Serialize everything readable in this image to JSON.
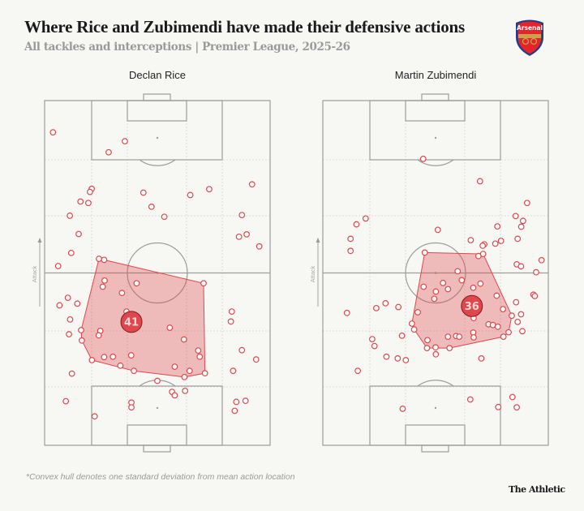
{
  "title": "Where Rice and Zubimendi have made their defensive actions",
  "subtitle": "All tackles and interceptions | Premier League, 2025-26",
  "footnote": "*Convex hull denotes one standard deviation from mean action location",
  "brand": "The Athletic",
  "crest": {
    "text": "Arsenal",
    "icon": "arsenal-crest-icon"
  },
  "colors": {
    "accent": "#e0474c",
    "hull_fill": "#f2b3b3",
    "line": "#9d9d9d",
    "background": "#f7f7f4"
  },
  "chart_data": [
    {
      "type": "scatter",
      "title": "Declan Rice",
      "direction_label": "Attack",
      "coordinates": "pitch 0-100: w = across width (left to right), l = along length (own goal 0 to opponent goal 100)",
      "badge": {
        "label": "41",
        "w": 38.5,
        "l": 35.8
      },
      "hull": [
        [
          24.1,
          54.1
        ],
        [
          26.4,
          53.8
        ],
        [
          70.5,
          47.0
        ],
        [
          71.1,
          20.9
        ],
        [
          62.0,
          19.8
        ],
        [
          39.6,
          21.6
        ],
        [
          21.0,
          24.7
        ],
        [
          16.5,
          30.4
        ],
        [
          16.2,
          33.4
        ]
      ],
      "points": [
        [
          3.7,
          90.8
        ],
        [
          35.6,
          88.2
        ],
        [
          28.4,
          85.0
        ],
        [
          20.9,
          74.4
        ],
        [
          20.1,
          73.5
        ],
        [
          43.8,
          73.3
        ],
        [
          64.6,
          72.6
        ],
        [
          73.0,
          74.3
        ],
        [
          92.0,
          75.7
        ],
        [
          15.9,
          70.7
        ],
        [
          19.4,
          70.3
        ],
        [
          47.4,
          69.2
        ],
        [
          11.2,
          66.6
        ],
        [
          53.1,
          66.3
        ],
        [
          87.5,
          66.8
        ],
        [
          15.1,
          61.3
        ],
        [
          86.2,
          60.5
        ],
        [
          89.6,
          61.2
        ],
        [
          95.2,
          57.7
        ],
        [
          11.8,
          55.8
        ],
        [
          24.1,
          54.1
        ],
        [
          26.4,
          53.8
        ],
        [
          6.0,
          52.0
        ],
        [
          26.6,
          47.8
        ],
        [
          25.8,
          46.0
        ],
        [
          40.8,
          47.0
        ],
        [
          70.5,
          47.0
        ],
        [
          34.3,
          44.2
        ],
        [
          10.3,
          42.8
        ],
        [
          6.6,
          40.6
        ],
        [
          14.5,
          41.1
        ],
        [
          36.3,
          38.8
        ],
        [
          11.3,
          36.5
        ],
        [
          83.0,
          38.8
        ],
        [
          82.6,
          35.9
        ],
        [
          16.2,
          33.4
        ],
        [
          24.7,
          33.2
        ],
        [
          10.8,
          32.2
        ],
        [
          24.0,
          31.9
        ],
        [
          55.5,
          34.1
        ],
        [
          61.8,
          30.7
        ],
        [
          16.5,
          30.4
        ],
        [
          68.1,
          27.5
        ],
        [
          68.8,
          25.7
        ],
        [
          87.5,
          27.6
        ],
        [
          93.8,
          24.9
        ],
        [
          21.0,
          24.7
        ],
        [
          26.4,
          25.6
        ],
        [
          30.3,
          25.7
        ],
        [
          38.4,
          26.1
        ],
        [
          33.6,
          23.1
        ],
        [
          39.6,
          21.6
        ],
        [
          57.7,
          22.8
        ],
        [
          64.3,
          21.6
        ],
        [
          12.1,
          20.8
        ],
        [
          62.0,
          19.8
        ],
        [
          71.1,
          20.9
        ],
        [
          83.6,
          21.6
        ],
        [
          50.0,
          18.7
        ],
        [
          56.5,
          15.5
        ],
        [
          57.7,
          14.5
        ],
        [
          62.3,
          15.8
        ],
        [
          9.4,
          12.8
        ],
        [
          38.5,
          12.4
        ],
        [
          38.5,
          11.0
        ],
        [
          85.0,
          12.6
        ],
        [
          89.1,
          12.9
        ],
        [
          84.3,
          10.0
        ],
        [
          22.2,
          8.4
        ]
      ]
    },
    {
      "type": "scatter",
      "title": "Martin Zubimendi",
      "direction_label": "Attack",
      "coordinates": "pitch 0-100: w = across width (left to right), l = along length (own goal 0 to opponent goal 100)",
      "badge": {
        "label": "36",
        "w": 66.1,
        "l": 40.4
      },
      "hull": [
        [
          45.2,
          55.9
        ],
        [
          71.1,
          55.5
        ],
        [
          83.8,
          37.6
        ],
        [
          82.4,
          32.8
        ],
        [
          80.1,
          31.5
        ],
        [
          56.2,
          28.2
        ],
        [
          46.2,
          28.2
        ],
        [
          40.5,
          33.6
        ],
        [
          39.5,
          35.3
        ]
      ],
      "points": [
        [
          44.5,
          83.1
        ],
        [
          69.7,
          76.6
        ],
        [
          90.6,
          70.3
        ],
        [
          85.5,
          66.5
        ],
        [
          88.8,
          65.1
        ],
        [
          88.0,
          63.4
        ],
        [
          19.0,
          65.8
        ],
        [
          14.9,
          64.1
        ],
        [
          51.0,
          62.5
        ],
        [
          77.4,
          63.5
        ],
        [
          12.3,
          59.9
        ],
        [
          65.6,
          59.5
        ],
        [
          71.6,
          58.3
        ],
        [
          70.9,
          57.9
        ],
        [
          76.5,
          58.5
        ],
        [
          79.0,
          59.3
        ],
        [
          86.4,
          59.9
        ],
        [
          12.3,
          56.4
        ],
        [
          45.2,
          55.9
        ],
        [
          69.0,
          54.9
        ],
        [
          71.1,
          55.5
        ],
        [
          97.0,
          53.7
        ],
        [
          86.0,
          52.5
        ],
        [
          87.9,
          51.9
        ],
        [
          59.8,
          50.5
        ],
        [
          94.6,
          50.2
        ],
        [
          61.6,
          47.9
        ],
        [
          44.7,
          46.0
        ],
        [
          53.3,
          47.1
        ],
        [
          55.5,
          45.3
        ],
        [
          50.1,
          44.6
        ],
        [
          66.7,
          45.7
        ],
        [
          69.9,
          46.9
        ],
        [
          49.4,
          42.5
        ],
        [
          77.1,
          43.4
        ],
        [
          93.4,
          43.7
        ],
        [
          94.0,
          43.3
        ],
        [
          85.7,
          41.5
        ],
        [
          27.8,
          41.2
        ],
        [
          23.7,
          39.8
        ],
        [
          33.5,
          40.1
        ],
        [
          10.7,
          38.4
        ],
        [
          42.1,
          38.6
        ],
        [
          79.9,
          39.5
        ],
        [
          66.9,
          36.9
        ],
        [
          83.8,
          37.6
        ],
        [
          87.9,
          38.0
        ],
        [
          86.4,
          35.8
        ],
        [
          39.5,
          35.3
        ],
        [
          40.5,
          33.6
        ],
        [
          73.5,
          35.1
        ],
        [
          75.4,
          34.9
        ],
        [
          77.6,
          34.4
        ],
        [
          88.5,
          33.1
        ],
        [
          82.4,
          32.8
        ],
        [
          66.7,
          32.7
        ],
        [
          35.1,
          31.8
        ],
        [
          55.5,
          31.5
        ],
        [
          59.1,
          31.7
        ],
        [
          60.5,
          31.5
        ],
        [
          66.9,
          31.3
        ],
        [
          80.1,
          31.5
        ],
        [
          21.9,
          30.8
        ],
        [
          46.4,
          30.5
        ],
        [
          22.9,
          28.8
        ],
        [
          46.2,
          28.2
        ],
        [
          50.0,
          28.4
        ],
        [
          56.2,
          28.2
        ],
        [
          50.1,
          26.4
        ],
        [
          28.2,
          25.7
        ],
        [
          33.2,
          25.2
        ],
        [
          36.8,
          24.7
        ],
        [
          70.3,
          25.2
        ],
        [
          15.5,
          21.6
        ],
        [
          65.4,
          13.3
        ],
        [
          84.1,
          14.0
        ],
        [
          77.8,
          11.1
        ],
        [
          86.0,
          11.0
        ],
        [
          35.4,
          10.6
        ]
      ]
    }
  ]
}
